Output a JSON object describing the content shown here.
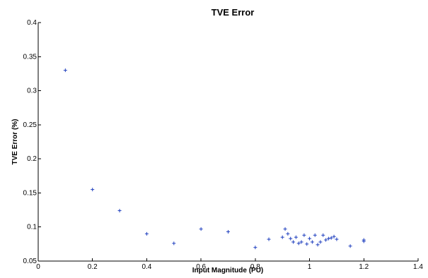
{
  "chart_data": {
    "type": "scatter",
    "title": "TVE Error",
    "xlabel": "Input Magnitude (PU)",
    "ylabel": "TVE Error (%)",
    "xlim": [
      0,
      1.4
    ],
    "ylim": [
      0.05,
      0.4
    ],
    "xticks": [
      "0",
      "0.2",
      "0.4",
      "0.6",
      "0.8",
      "1",
      "1.2",
      "1.4"
    ],
    "yticks": [
      "0.05",
      "0.1",
      "0.15",
      "0.2",
      "0.25",
      "0.3",
      "0.35",
      "0.4"
    ],
    "grid": false,
    "marker": "+",
    "marker_color": "#1f3fbf",
    "series": [
      {
        "x": [
          0.1,
          0.2,
          0.3,
          0.4,
          0.5,
          0.6,
          0.7,
          0.8,
          0.85,
          0.9,
          0.91,
          0.92,
          0.93,
          0.94,
          0.95,
          0.96,
          0.97,
          0.98,
          0.99,
          1.0,
          1.01,
          1.02,
          1.03,
          1.04,
          1.05,
          1.06,
          1.07,
          1.08,
          1.09,
          1.1,
          1.15,
          1.2,
          1.2
        ],
        "y": [
          0.33,
          0.155,
          0.124,
          0.09,
          0.076,
          0.097,
          0.093,
          0.07,
          0.082,
          0.085,
          0.097,
          0.09,
          0.083,
          0.078,
          0.085,
          0.076,
          0.078,
          0.088,
          0.075,
          0.083,
          0.078,
          0.088,
          0.074,
          0.078,
          0.088,
          0.081,
          0.083,
          0.084,
          0.086,
          0.082,
          0.072,
          0.079,
          0.081
        ]
      }
    ]
  }
}
